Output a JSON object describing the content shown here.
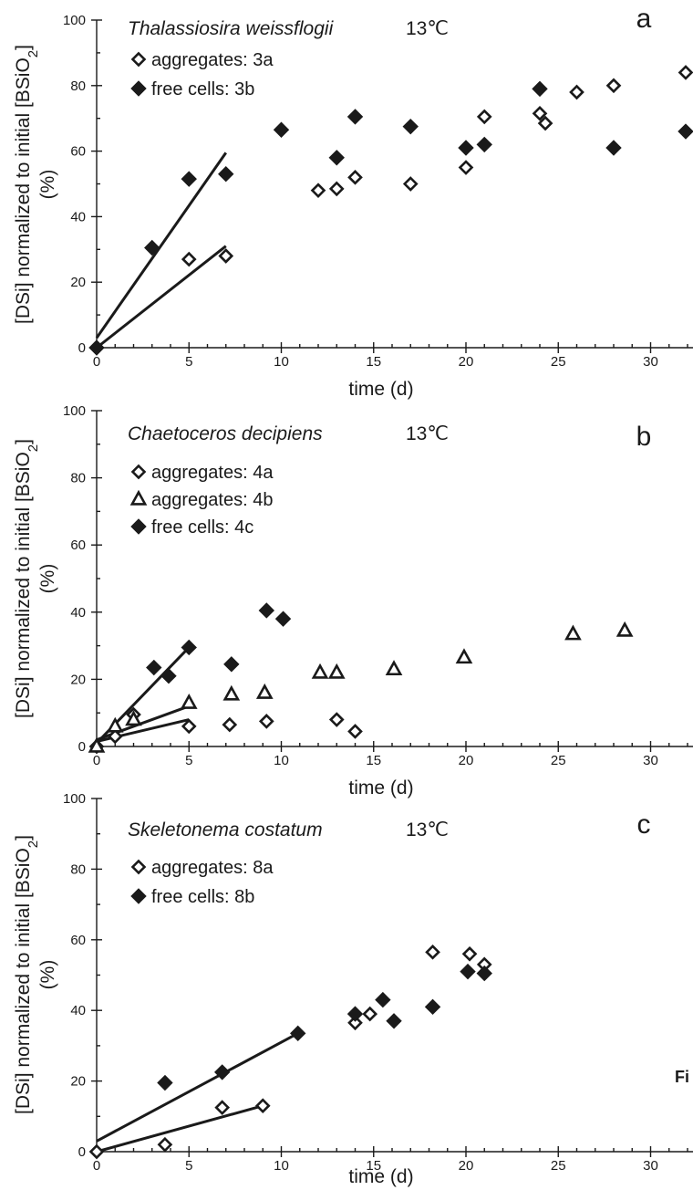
{
  "figure_label": "Fi",
  "chart_data": [
    {
      "panel": "a",
      "type": "scatter",
      "title": "Thalassiosira weissflogii",
      "temperature": "13℃",
      "xlabel": "time (d)",
      "ylabel_line1": "[DSi] normalized to initial [BSiO",
      "ylabel_sub": "2",
      "ylabel_close": "]",
      "ylabel_line2": "(%)",
      "xlim": [
        0,
        32
      ],
      "ylim": [
        0,
        100
      ],
      "xticks": [
        "0",
        "5",
        "10",
        "15",
        "20",
        "25",
        "30"
      ],
      "yticks": [
        "0",
        "20",
        "40",
        "60",
        "80",
        "100"
      ],
      "legend_position": "top-left",
      "grid": false,
      "series": [
        {
          "name": "aggregates: 3a",
          "marker": "diamond-open",
          "points": [
            [
              0,
              0
            ],
            [
              5,
              27
            ],
            [
              7,
              28
            ],
            [
              12,
              48
            ],
            [
              13,
              48.5
            ],
            [
              14,
              52
            ],
            [
              17,
              50
            ],
            [
              20,
              55
            ],
            [
              21,
              70.5
            ],
            [
              24,
              71.5
            ],
            [
              24.3,
              68.5
            ],
            [
              26,
              78
            ],
            [
              28,
              80
            ],
            [
              32,
              84
            ]
          ],
          "fit": [
            [
              0,
              0
            ],
            [
              7,
              31
            ]
          ]
        },
        {
          "name": "free cells: 3b",
          "marker": "diamond-filled",
          "points": [
            [
              0,
              0
            ],
            [
              3,
              30.5
            ],
            [
              5,
              51.5
            ],
            [
              7,
              53
            ],
            [
              10,
              66.5
            ],
            [
              13,
              58
            ],
            [
              14,
              70.5
            ],
            [
              17,
              67.5
            ],
            [
              20,
              61
            ],
            [
              21,
              62
            ],
            [
              24,
              79
            ],
            [
              28,
              61
            ],
            [
              32,
              66
            ]
          ],
          "fit": [
            [
              0,
              3
            ],
            [
              7,
              59.5
            ]
          ]
        }
      ]
    },
    {
      "panel": "b",
      "type": "scatter",
      "title": "Chaetoceros decipiens",
      "temperature": "13℃",
      "xlabel": "time (d)",
      "ylabel_line1": "[DSi] normalized to initial [BSiO",
      "ylabel_sub": "2",
      "ylabel_close": "]",
      "ylabel_line2": "(%)",
      "xlim": [
        0,
        32
      ],
      "ylim": [
        0,
        100
      ],
      "xticks": [
        "0",
        "5",
        "10",
        "15",
        "20",
        "25",
        "30"
      ],
      "yticks": [
        "0",
        "20",
        "40",
        "60",
        "80",
        "100"
      ],
      "legend_position": "top-left",
      "grid": false,
      "series": [
        {
          "name": "aggregates: 4a",
          "marker": "diamond-open",
          "points": [
            [
              0,
              0
            ],
            [
              1,
              3
            ],
            [
              2,
              9.5
            ],
            [
              5,
              6
            ],
            [
              7.2,
              6.5
            ],
            [
              9.2,
              7.5
            ],
            [
              13,
              8
            ],
            [
              14,
              4.5
            ]
          ],
          "fit": [
            [
              0,
              1.5
            ],
            [
              5,
              8
            ]
          ]
        },
        {
          "name": "aggregates: 4b",
          "marker": "triangle-open",
          "points": [
            [
              0,
              0
            ],
            [
              1,
              6
            ],
            [
              2,
              8
            ],
            [
              5,
              13
            ],
            [
              7.3,
              15.5
            ],
            [
              9.1,
              16
            ],
            [
              12.1,
              22
            ],
            [
              13,
              22
            ],
            [
              16.1,
              23
            ],
            [
              19.9,
              26.5
            ],
            [
              25.8,
              33.5
            ],
            [
              28.6,
              34.5
            ]
          ],
          "fit": [
            [
              0,
              2
            ],
            [
              5,
              12
            ]
          ]
        },
        {
          "name": "free cells: 4c",
          "marker": "diamond-filled",
          "points": [
            [
              3.1,
              23.5
            ],
            [
              3.9,
              21
            ],
            [
              5,
              29.5
            ],
            [
              7.3,
              24.5
            ],
            [
              9.2,
              40.5
            ],
            [
              10.1,
              38
            ]
          ],
          "fit": [
            [
              0,
              1
            ],
            [
              5,
              29.5
            ]
          ]
        }
      ]
    },
    {
      "panel": "c",
      "type": "scatter",
      "title": "Skeletonema costatum",
      "temperature": "13℃",
      "xlabel": "time (d)",
      "ylabel_line1": "[DSi] normalized to initial [BSiO",
      "ylabel_sub": "2",
      "ylabel_close": "]",
      "ylabel_line2": "(%)",
      "xlim": [
        0,
        32
      ],
      "ylim": [
        0,
        100
      ],
      "xticks": [
        "0",
        "5",
        "10",
        "15",
        "20",
        "25",
        "30"
      ],
      "yticks": [
        "0",
        "20",
        "40",
        "60",
        "80",
        "100"
      ],
      "legend_position": "top-left",
      "grid": false,
      "series": [
        {
          "name": "aggregates: 8a",
          "marker": "diamond-open",
          "points": [
            [
              0,
              0
            ],
            [
              3.7,
              2
            ],
            [
              6.8,
              12.5
            ],
            [
              9,
              13
            ],
            [
              14,
              36.5
            ],
            [
              14.8,
              39
            ],
            [
              18.2,
              56.5
            ],
            [
              20.2,
              56
            ],
            [
              21,
              53
            ]
          ],
          "fit": [
            [
              0,
              0
            ],
            [
              9,
              13
            ]
          ]
        },
        {
          "name": "free cells: 8b",
          "marker": "diamond-filled",
          "points": [
            [
              3.7,
              19.5
            ],
            [
              6.8,
              22.5
            ],
            [
              10.9,
              33.5
            ],
            [
              14,
              39
            ],
            [
              15.5,
              43
            ],
            [
              16.1,
              37
            ],
            [
              18.2,
              41
            ],
            [
              20.1,
              51
            ],
            [
              21,
              50.5
            ]
          ],
          "fit": [
            [
              0,
              3
            ],
            [
              10.9,
              33.5
            ]
          ]
        }
      ]
    }
  ]
}
